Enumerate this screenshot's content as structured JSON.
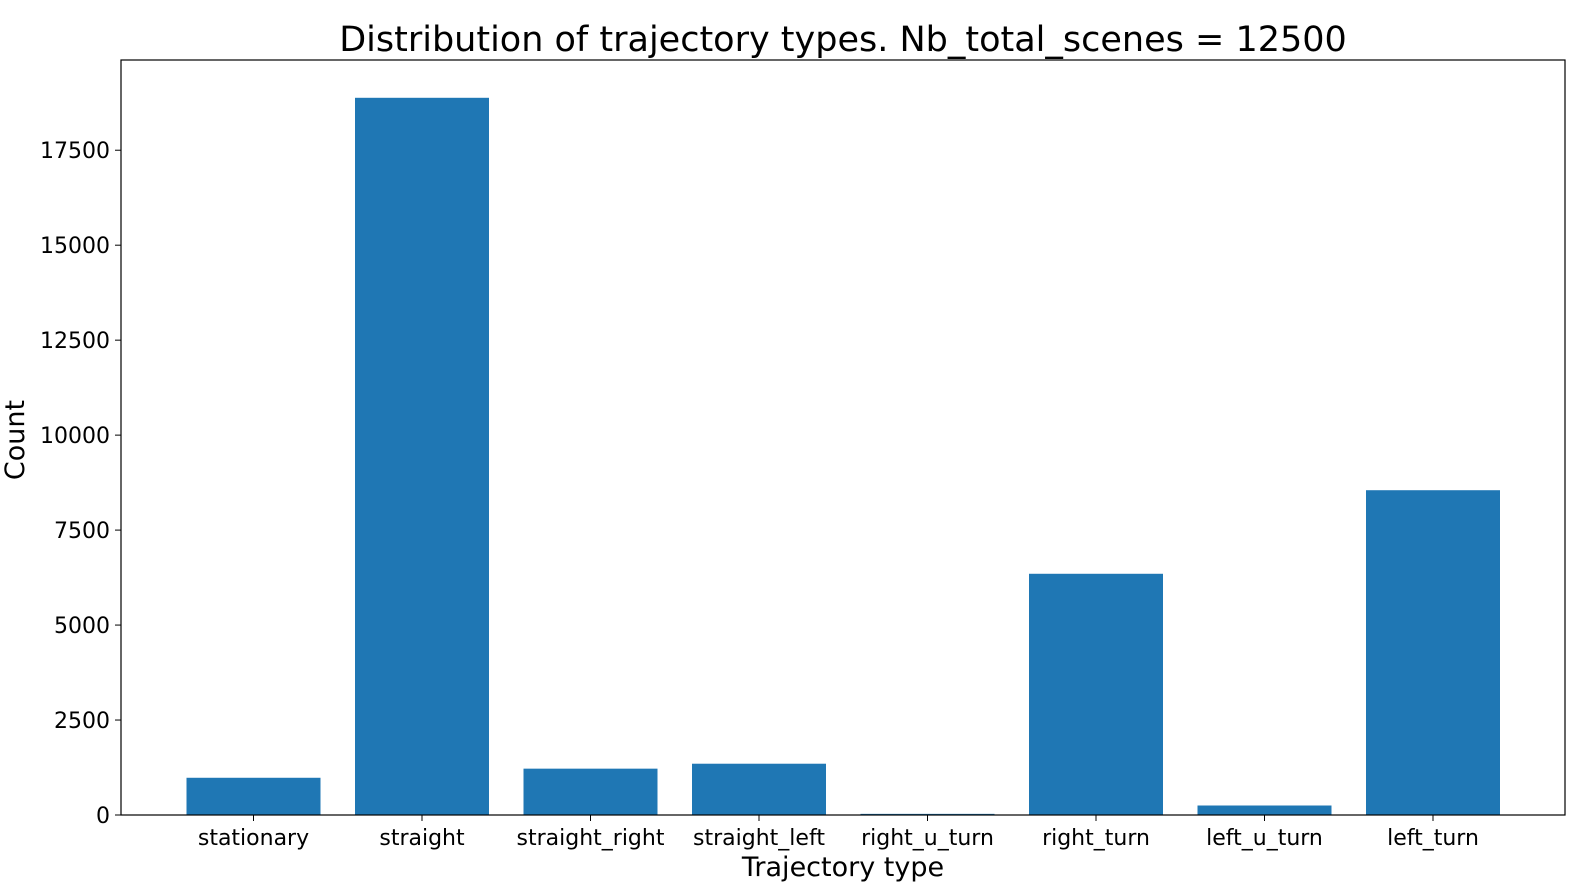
{
  "chart_data": {
    "type": "bar",
    "title": "Distribution of trajectory types. Nb_total_scenes = 12500",
    "xlabel": "Trajectory type",
    "ylabel": "Count",
    "categories": [
      "stationary",
      "straight",
      "straight_right",
      "straight_left",
      "right_u_turn",
      "right_turn",
      "left_u_turn",
      "left_turn"
    ],
    "values": [
      980,
      18880,
      1220,
      1350,
      30,
      6350,
      250,
      8550
    ],
    "ylim": [
      0,
      19875
    ],
    "yticks": [
      0,
      2500,
      5000,
      7500,
      10000,
      12500,
      15000,
      17500
    ],
    "ytick_labels": [
      "0",
      "2500",
      "5000",
      "7500",
      "10000",
      "12500",
      "15000",
      "17500"
    ],
    "grid": false,
    "legend": "none",
    "bar_color": "#1f77b4"
  }
}
